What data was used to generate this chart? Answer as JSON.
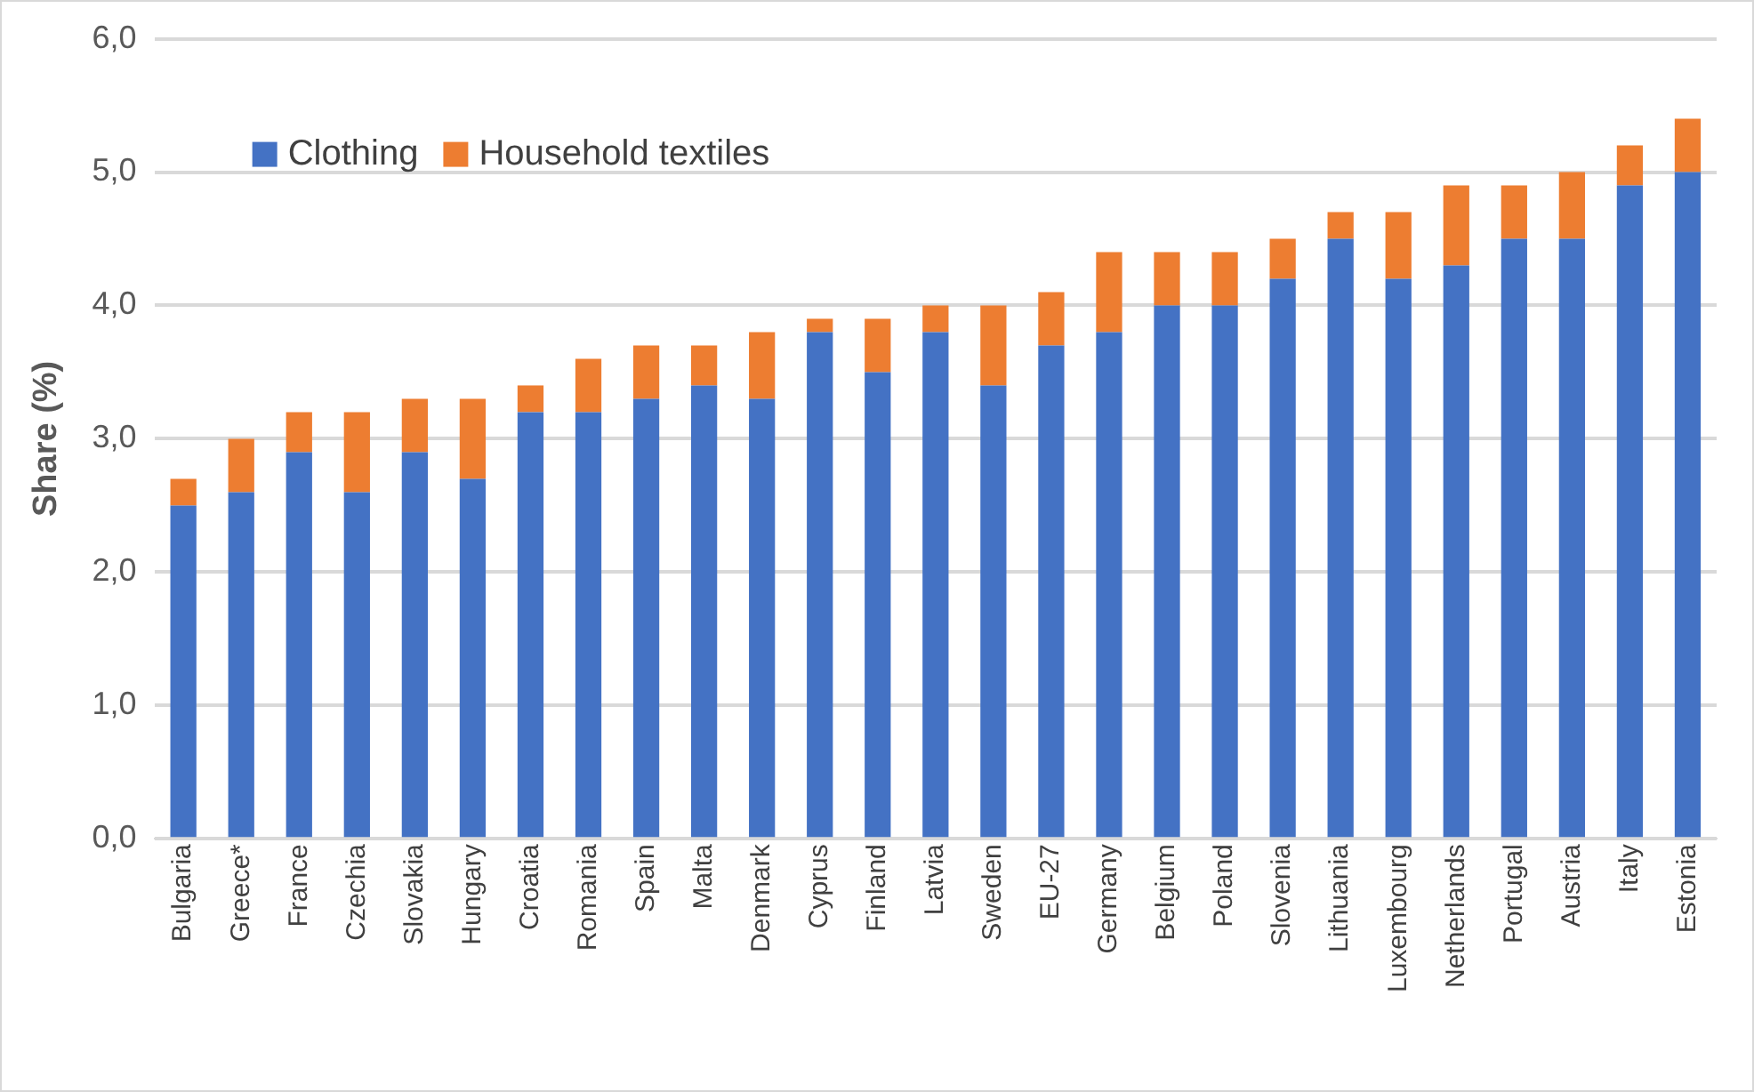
{
  "chart_data": {
    "type": "bar",
    "stacked": true,
    "ylabel": "Share (%)",
    "categories": [
      "Bulgaria",
      "Greece*",
      "France",
      "Czechia",
      "Slovakia",
      "Hungary",
      "Croatia",
      "Romania",
      "Spain",
      "Malta",
      "Denmark",
      "Cyprus",
      "Finland",
      "Latvia",
      "Sweden",
      "EU-27",
      "Germany",
      "Belgium",
      "Poland",
      "Slovenia",
      "Lithuania",
      "Luxembourg",
      "Netherlands",
      "Portugal",
      "Austria",
      "Italy",
      "Estonia"
    ],
    "series": [
      {
        "name": "Clothing",
        "color": "#4472c4",
        "values": [
          2.5,
          2.6,
          2.9,
          2.6,
          2.9,
          2.7,
          3.2,
          3.2,
          3.3,
          3.4,
          3.3,
          3.8,
          3.5,
          3.8,
          3.4,
          3.7,
          3.8,
          4.0,
          4.0,
          4.2,
          4.5,
          4.2,
          4.3,
          4.5,
          4.5,
          4.9,
          5.0
        ]
      },
      {
        "name": "Household textiles",
        "color": "#ed7d31",
        "values": [
          0.2,
          0.4,
          0.3,
          0.6,
          0.4,
          0.6,
          0.2,
          0.4,
          0.4,
          0.3,
          0.5,
          0.1,
          0.4,
          0.2,
          0.6,
          0.4,
          0.6,
          0.4,
          0.4,
          0.3,
          0.2,
          0.5,
          0.6,
          0.4,
          0.5,
          0.3,
          0.4
        ]
      }
    ],
    "ylim": [
      0,
      6
    ],
    "yticks": [
      {
        "value": 0,
        "label": "0,0"
      },
      {
        "value": 1,
        "label": "1,0"
      },
      {
        "value": 2,
        "label": "2,0"
      },
      {
        "value": 3,
        "label": "3,0"
      },
      {
        "value": 4,
        "label": "4,0"
      },
      {
        "value": 5,
        "label": "5,0"
      },
      {
        "value": 6,
        "label": "6,0"
      }
    ],
    "grid": "y",
    "legend": "top left"
  }
}
